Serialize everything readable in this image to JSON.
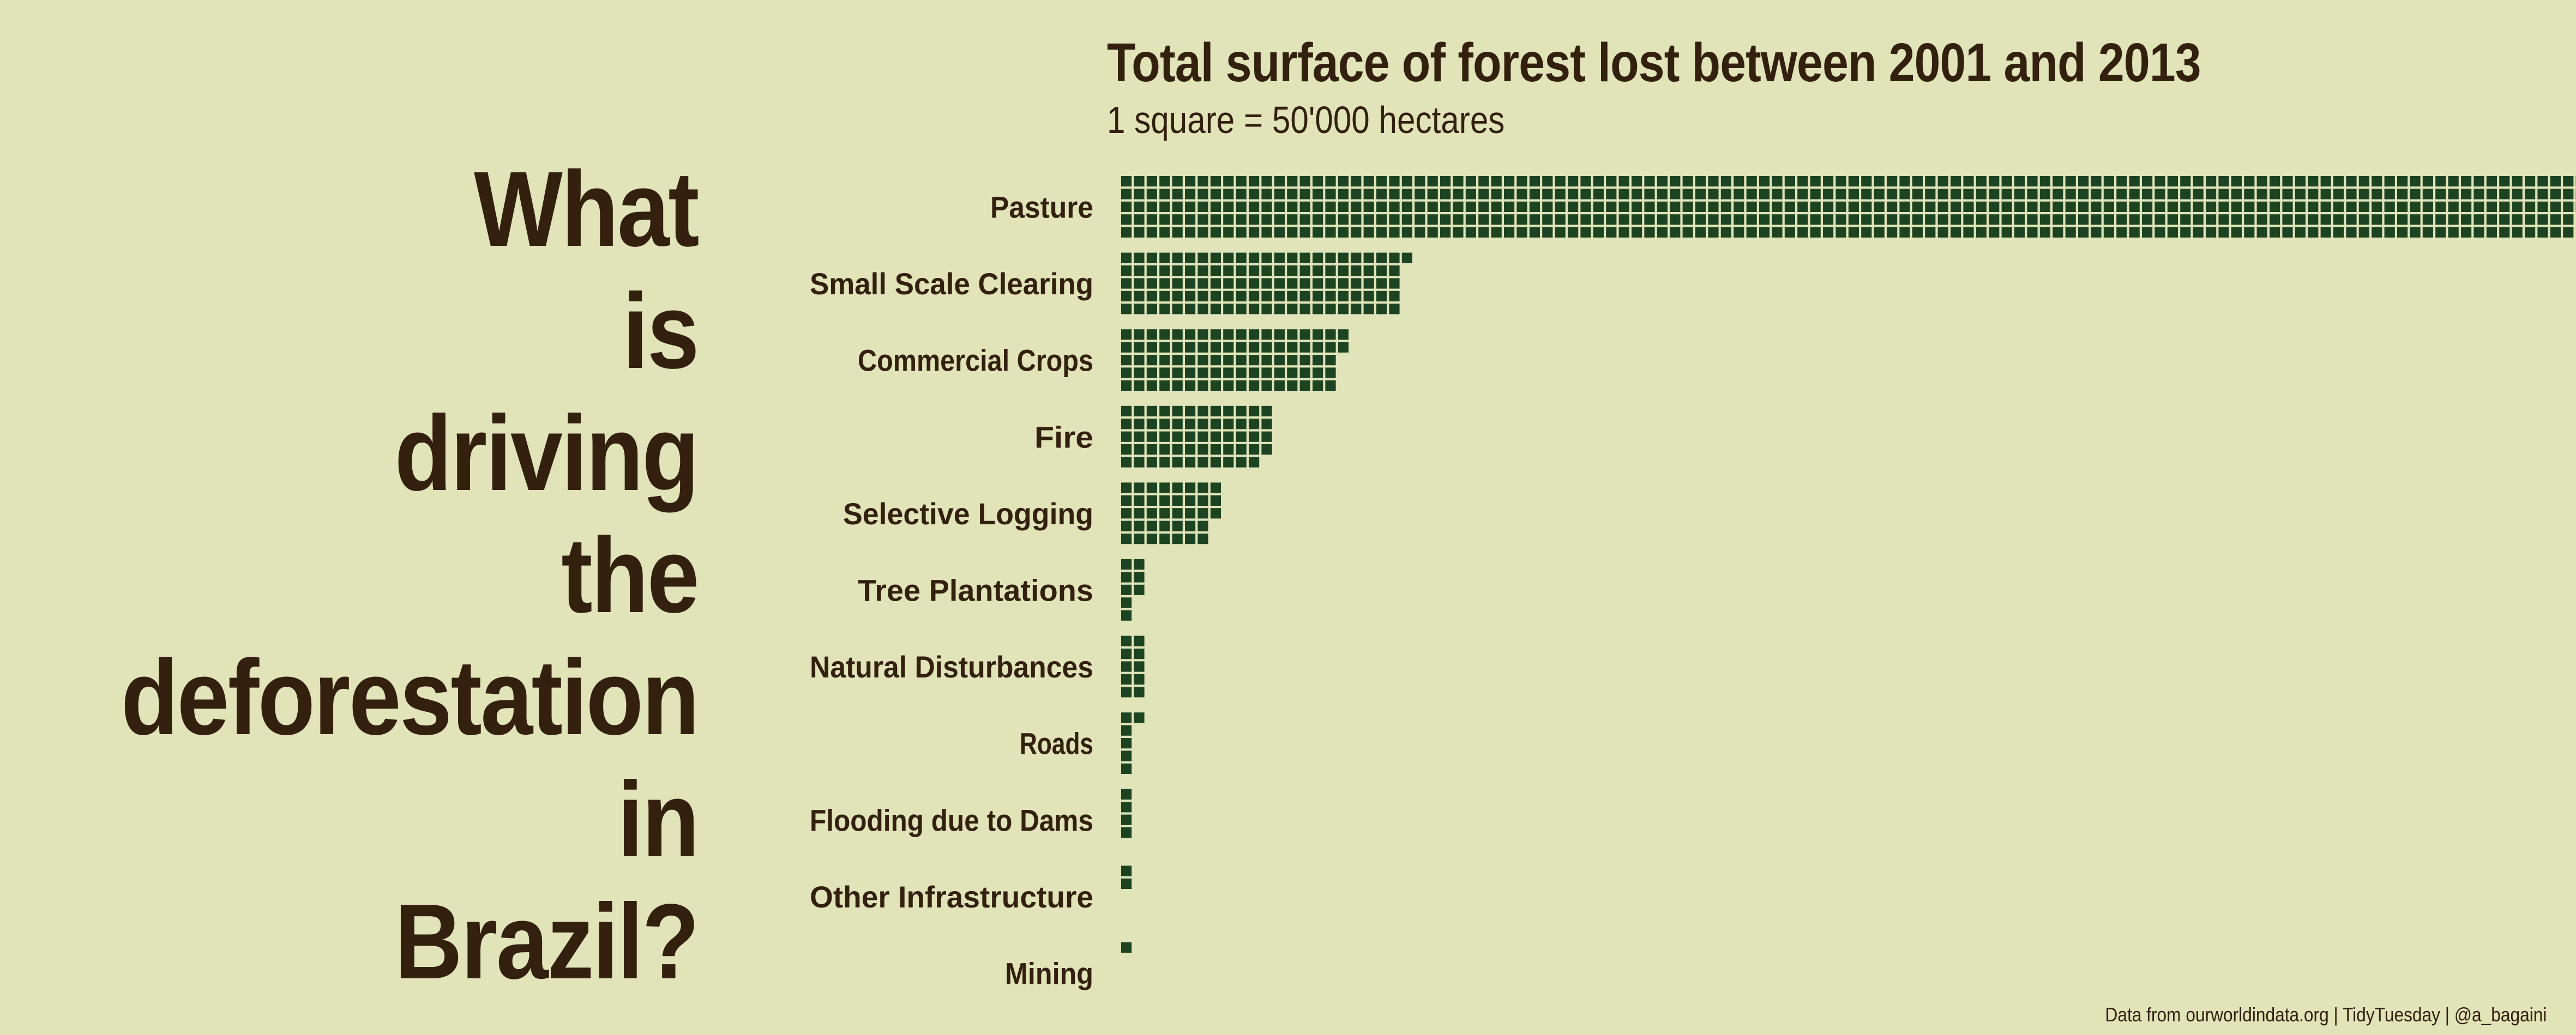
{
  "headline": {
    "lines": [
      "What",
      "is",
      "driving",
      "the",
      "deforestation",
      "in",
      "Brazil?"
    ]
  },
  "caption": "Data from ourworldindata.org | TidyTuesday | @a_bagaini",
  "colors": {
    "background": "#e1e3b8",
    "text": "#33200f",
    "square": "#1c4423"
  },
  "chart_data": {
    "type": "waffle",
    "title": "Total surface of forest lost between 2001 and 2013",
    "subtitle": "1 square = 50'000 hectares",
    "unit_per_square_hectares": 50000,
    "rows_per_bar": 5,
    "categories": [
      "Pasture",
      "Small Scale Clearing",
      "Commercial Crops",
      "Fire",
      "Selective Logging",
      "Tree Plantations",
      "Natural Disturbances",
      "Roads",
      "Flooding due to Dams",
      "Other Infrastructure",
      "Mining"
    ],
    "squares": [
      573,
      111,
      87,
      59,
      38,
      8,
      10,
      6,
      4,
      2,
      1
    ]
  }
}
